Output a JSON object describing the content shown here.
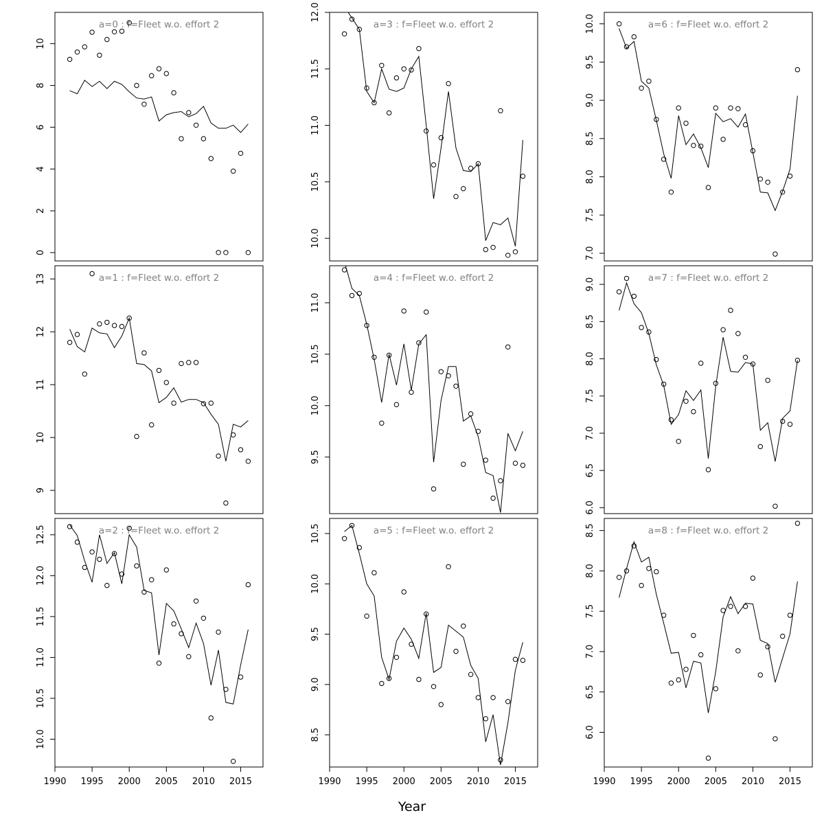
{
  "figure": {
    "xlabel": "Year"
  },
  "chart_data": [
    {
      "type": "line",
      "title": "a=0  :  f=Fleet w.o. effort 2",
      "xlim": [
        1990,
        2018
      ],
      "ylim": [
        -0.4,
        11.5
      ],
      "xticks": [
        1990,
        1995,
        2000,
        2005,
        2010,
        2015
      ],
      "yticks": [
        0,
        2,
        4,
        6,
        8,
        10
      ],
      "observed": {
        "x": [
          1992,
          1993,
          1994,
          1995,
          1996,
          1997,
          1998,
          1999,
          2000,
          2001,
          2002,
          2003,
          2004,
          2005,
          2006,
          2007,
          2008,
          2009,
          2010,
          2011,
          2012,
          2013,
          2014,
          2015,
          2016
        ],
        "y": [
          9.25,
          9.6,
          9.85,
          10.55,
          9.45,
          10.2,
          10.57,
          10.6,
          11.0,
          8.0,
          7.1,
          8.47,
          8.8,
          8.57,
          7.65,
          5.45,
          6.7,
          6.1,
          5.45,
          4.5,
          0.0,
          0.0,
          3.9,
          4.75,
          0.0
        ]
      },
      "fitted": {
        "x": [
          1992,
          1993,
          1994,
          1995,
          1996,
          1997,
          1998,
          1999,
          2000,
          2001,
          2002,
          2003,
          2004,
          2005,
          2006,
          2007,
          2008,
          2009,
          2010,
          2011,
          2012,
          2013,
          2014,
          2015,
          2016
        ],
        "y": [
          7.75,
          7.6,
          8.25,
          7.95,
          8.2,
          7.85,
          8.2,
          8.05,
          7.7,
          7.4,
          7.35,
          7.45,
          6.3,
          6.6,
          6.7,
          6.75,
          6.5,
          6.65,
          7.0,
          6.2,
          5.95,
          5.95,
          6.1,
          5.75,
          6.15
        ]
      }
    },
    {
      "type": "line",
      "title": "a=1  :  f=Fleet w.o. effort 2",
      "xlim": [
        1990,
        2018
      ],
      "ylim": [
        8.56,
        13.25
      ],
      "xticks": [
        1990,
        1995,
        2000,
        2005,
        2010,
        2015
      ],
      "yticks": [
        9,
        10,
        11,
        12,
        13
      ],
      "observed": {
        "x": [
          1992,
          1993,
          1994,
          1995,
          1996,
          1997,
          1998,
          1999,
          2000,
          2001,
          2002,
          2003,
          2004,
          2005,
          2006,
          2007,
          2008,
          2009,
          2010,
          2011,
          2012,
          2013,
          2014,
          2015,
          2016
        ],
        "y": [
          11.8,
          11.95,
          11.2,
          13.1,
          12.15,
          12.18,
          12.12,
          12.1,
          12.26,
          10.02,
          11.6,
          10.24,
          11.27,
          11.04,
          10.65,
          11.4,
          11.42,
          11.42,
          10.64,
          10.65,
          9.65,
          8.76,
          10.05,
          9.77,
          9.55
        ]
      },
      "fitted": {
        "x": [
          1992,
          1993,
          1994,
          1995,
          1996,
          1997,
          1998,
          1999,
          2000,
          2001,
          2002,
          2003,
          2004,
          2005,
          2006,
          2007,
          2008,
          2009,
          2010,
          2011,
          2012,
          2013,
          2014,
          2015,
          2016
        ],
        "y": [
          12.05,
          11.72,
          11.62,
          12.07,
          11.98,
          11.96,
          11.7,
          11.92,
          12.26,
          11.4,
          11.38,
          11.26,
          10.66,
          10.76,
          10.94,
          10.67,
          10.72,
          10.72,
          10.66,
          10.44,
          10.25,
          9.55,
          10.25,
          10.2,
          10.32
        ]
      }
    },
    {
      "type": "line",
      "title": "a=2  :  f=Fleet w.o. effort 2",
      "xlim": [
        1990,
        2018
      ],
      "ylim": [
        9.66,
        12.7
      ],
      "xticks": [
        1990,
        1995,
        2000,
        2005,
        2010,
        2015
      ],
      "yticks": [
        10.0,
        10.5,
        11.0,
        11.5,
        12.0,
        12.5
      ],
      "observed": {
        "x": [
          1992,
          1993,
          1994,
          1995,
          1996,
          1997,
          1998,
          1999,
          2000,
          2001,
          2002,
          2003,
          2004,
          2005,
          2006,
          2007,
          2008,
          2009,
          2010,
          2011,
          2012,
          2013,
          2014,
          2015,
          2016
        ],
        "y": [
          12.6,
          12.41,
          12.1,
          12.29,
          12.2,
          11.88,
          12.27,
          12.02,
          12.58,
          12.12,
          11.8,
          11.95,
          10.93,
          12.07,
          11.41,
          11.29,
          11.01,
          11.69,
          11.48,
          10.26,
          11.31,
          10.61,
          9.73,
          10.76,
          11.89
        ]
      },
      "fitted": {
        "x": [
          1992,
          1993,
          1994,
          1995,
          1996,
          1997,
          1998,
          1999,
          2000,
          2001,
          2002,
          2003,
          2004,
          2005,
          2006,
          2007,
          2008,
          2009,
          2010,
          2011,
          2012,
          2013,
          2014,
          2015,
          2016
        ],
        "y": [
          12.62,
          12.49,
          12.18,
          11.92,
          12.5,
          12.15,
          12.28,
          11.9,
          12.5,
          12.35,
          11.82,
          11.79,
          11.03,
          11.66,
          11.57,
          11.35,
          11.12,
          11.42,
          11.17,
          10.66,
          11.09,
          10.45,
          10.43,
          10.91,
          11.34
        ]
      }
    },
    {
      "type": "line",
      "title": "a=3  :  f=Fleet w.o. effort 2",
      "xlim": [
        1990,
        2018
      ],
      "ylim": [
        9.8,
        12.0
      ],
      "xticks": [
        1990,
        1995,
        2000,
        2005,
        2010,
        2015
      ],
      "yticks": [
        10.0,
        10.5,
        11.0,
        11.5,
        12.0
      ],
      "observed": {
        "x": [
          1992,
          1993,
          1994,
          1995,
          1996,
          1997,
          1998,
          1999,
          2000,
          2001,
          2002,
          2003,
          2004,
          2005,
          2006,
          2007,
          2008,
          2009,
          2010,
          2011,
          2012,
          2013,
          2014,
          2015,
          2016
        ],
        "y": [
          11.81,
          11.94,
          11.85,
          11.33,
          11.2,
          11.53,
          11.11,
          11.42,
          11.5,
          11.49,
          11.68,
          10.95,
          10.65,
          10.89,
          11.37,
          10.37,
          10.44,
          10.62,
          10.66,
          9.9,
          9.92,
          11.13,
          9.85,
          9.88,
          10.55
        ]
      },
      "fitted": {
        "x": [
          1992,
          1993,
          1994,
          1995,
          1996,
          1997,
          1998,
          1999,
          2000,
          2001,
          2002,
          2003,
          2004,
          2005,
          2006,
          2007,
          2008,
          2009,
          2010,
          2011,
          2012,
          2013,
          2014,
          2015,
          2016
        ],
        "y": [
          12.05,
          11.95,
          11.85,
          11.3,
          11.2,
          11.5,
          11.32,
          11.3,
          11.33,
          11.5,
          11.61,
          11.0,
          10.35,
          10.8,
          11.3,
          10.8,
          10.6,
          10.59,
          10.66,
          9.98,
          10.14,
          10.12,
          10.18,
          9.93,
          10.87
        ]
      }
    },
    {
      "type": "line",
      "title": "a=4  :  f=Fleet w.o. effort 2",
      "xlim": [
        1990,
        2018
      ],
      "ylim": [
        8.95,
        11.36
      ],
      "xticks": [
        1990,
        1995,
        2000,
        2005,
        2010,
        2015
      ],
      "yticks": [
        9.5,
        10.0,
        10.5,
        11.0
      ],
      "observed": {
        "x": [
          1992,
          1993,
          1994,
          1995,
          1996,
          1997,
          1998,
          1999,
          2000,
          2001,
          2002,
          2003,
          2004,
          2005,
          2006,
          2007,
          2008,
          2009,
          2010,
          2011,
          2012,
          2013,
          2014,
          2015,
          2016
        ],
        "y": [
          11.32,
          11.07,
          11.09,
          10.78,
          10.47,
          9.83,
          10.49,
          10.01,
          10.92,
          10.13,
          10.61,
          10.91,
          9.19,
          10.33,
          10.29,
          10.19,
          9.43,
          9.92,
          9.75,
          9.47,
          9.1,
          9.27,
          10.57,
          9.44,
          9.42
        ]
      },
      "fitted": {
        "x": [
          1992,
          1993,
          1994,
          1995,
          1996,
          1997,
          1998,
          1999,
          2000,
          2001,
          2002,
          2003,
          2004,
          2005,
          2006,
          2007,
          2008,
          2009,
          2010,
          2011,
          2012,
          2013,
          2014,
          2015,
          2016
        ],
        "y": [
          11.4,
          11.14,
          11.07,
          10.79,
          10.45,
          10.03,
          10.5,
          10.2,
          10.6,
          10.15,
          10.6,
          10.69,
          9.45,
          10.05,
          10.38,
          10.38,
          9.85,
          9.9,
          9.7,
          9.35,
          9.32,
          8.96,
          9.73,
          9.56,
          9.75
        ]
      }
    },
    {
      "type": "line",
      "title": "a=5  :  f=Fleet w.o. effort 2",
      "xlim": [
        1990,
        2018
      ],
      "ylim": [
        8.18,
        10.65
      ],
      "xticks": [
        1990,
        1995,
        2000,
        2005,
        2010,
        2015
      ],
      "yticks": [
        8.5,
        9.0,
        9.5,
        10.0,
        10.5
      ],
      "observed": {
        "x": [
          1992,
          1993,
          1994,
          1995,
          1996,
          1997,
          1998,
          1999,
          2000,
          2001,
          2002,
          2003,
          2004,
          2005,
          2006,
          2007,
          2008,
          2009,
          2010,
          2011,
          2012,
          2013,
          2014,
          2015,
          2016
        ],
        "y": [
          10.45,
          10.58,
          10.36,
          9.68,
          10.11,
          9.01,
          9.06,
          9.27,
          9.92,
          9.4,
          9.05,
          9.7,
          8.98,
          8.8,
          10.17,
          9.33,
          9.58,
          9.1,
          8.87,
          8.66,
          8.87,
          8.25,
          8.83,
          9.25,
          9.24
        ]
      },
      "fitted": {
        "x": [
          1992,
          1993,
          1994,
          1995,
          1996,
          1997,
          1998,
          1999,
          2000,
          2001,
          2002,
          2003,
          2004,
          2005,
          2006,
          2007,
          2008,
          2009,
          2010,
          2011,
          2012,
          2013,
          2014,
          2015,
          2016
        ],
        "y": [
          10.52,
          10.58,
          10.3,
          10.0,
          9.88,
          9.27,
          9.05,
          9.43,
          9.56,
          9.45,
          9.26,
          9.71,
          9.12,
          9.17,
          9.59,
          9.53,
          9.47,
          9.19,
          9.06,
          8.43,
          8.7,
          8.2,
          8.62,
          9.14,
          9.42
        ]
      }
    },
    {
      "type": "line",
      "title": "a=6  :  f=Fleet w.o. effort 2",
      "xlim": [
        1990,
        2018
      ],
      "ylim": [
        6.9,
        10.15
      ],
      "xticks": [
        1990,
        1995,
        2000,
        2005,
        2010,
        2015
      ],
      "yticks": [
        7.0,
        7.5,
        8.0,
        8.5,
        9.0,
        9.5,
        10.0
      ],
      "observed": {
        "x": [
          1992,
          1993,
          1994,
          1995,
          1996,
          1997,
          1998,
          1999,
          2000,
          2001,
          2002,
          2003,
          2004,
          2005,
          2006,
          2007,
          2008,
          2009,
          2010,
          2011,
          2012,
          2013,
          2014,
          2015,
          2016
        ],
        "y": [
          10.0,
          9.7,
          9.83,
          9.16,
          9.25,
          8.75,
          8.23,
          7.8,
          8.9,
          8.7,
          8.41,
          8.4,
          7.86,
          8.9,
          8.49,
          8.9,
          8.89,
          8.68,
          8.34,
          7.97,
          7.93,
          6.99,
          7.8,
          8.01,
          9.4
        ]
      },
      "fitted": {
        "x": [
          1992,
          1993,
          1994,
          1995,
          1996,
          1997,
          1998,
          1999,
          2000,
          2001,
          2002,
          2003,
          2004,
          2005,
          2006,
          2007,
          2008,
          2009,
          2010,
          2011,
          2012,
          2013,
          2014,
          2015,
          2016
        ],
        "y": [
          9.94,
          9.68,
          9.77,
          9.25,
          9.16,
          8.74,
          8.3,
          7.98,
          8.8,
          8.42,
          8.56,
          8.38,
          8.12,
          8.83,
          8.72,
          8.76,
          8.65,
          8.82,
          8.32,
          7.8,
          7.79,
          7.56,
          7.81,
          8.1,
          9.06
        ]
      }
    },
    {
      "type": "line",
      "title": "a=7  :  f=Fleet w.o. effort 2",
      "xlim": [
        1990,
        2018
      ],
      "ylim": [
        5.92,
        9.25
      ],
      "xticks": [
        1990,
        1995,
        2000,
        2005,
        2010,
        2015
      ],
      "yticks": [
        6.0,
        6.5,
        7.0,
        7.5,
        8.0,
        8.5,
        9.0
      ],
      "observed": {
        "x": [
          1992,
          1993,
          1994,
          1995,
          1996,
          1997,
          1998,
          1999,
          2000,
          2001,
          2002,
          2003,
          2004,
          2005,
          2006,
          2007,
          2008,
          2009,
          2010,
          2011,
          2012,
          2013,
          2014,
          2015,
          2016
        ],
        "y": [
          8.9,
          9.08,
          8.84,
          8.42,
          8.36,
          7.99,
          7.66,
          7.18,
          6.89,
          7.43,
          7.29,
          7.94,
          6.51,
          7.67,
          8.39,
          8.65,
          8.34,
          8.02,
          7.93,
          6.82,
          7.71,
          6.02,
          7.16,
          7.12,
          7.98
        ]
      },
      "fitted": {
        "x": [
          1992,
          1993,
          1994,
          1995,
          1996,
          1997,
          1998,
          1999,
          2000,
          2001,
          2002,
          2003,
          2004,
          2005,
          2006,
          2007,
          2008,
          2009,
          2010,
          2011,
          2012,
          2013,
          2014,
          2015,
          2016
        ],
        "y": [
          8.65,
          9.02,
          8.74,
          8.62,
          8.34,
          7.92,
          7.64,
          7.12,
          7.25,
          7.57,
          7.44,
          7.58,
          6.66,
          7.63,
          8.29,
          7.83,
          7.82,
          7.95,
          7.93,
          7.04,
          7.14,
          6.62,
          7.2,
          7.3,
          7.98
        ]
      }
    },
    {
      "type": "line",
      "title": "a=8  :  f=Fleet w.o. effort 2",
      "xlim": [
        1990,
        2018
      ],
      "ylim": [
        5.57,
        8.65
      ],
      "xticks": [
        1990,
        1995,
        2000,
        2005,
        2010,
        2015
      ],
      "yticks": [
        6.0,
        6.5,
        7.0,
        7.5,
        8.0,
        8.5
      ],
      "observed": {
        "x": [
          1992,
          1993,
          1994,
          1995,
          1996,
          1997,
          1998,
          1999,
          2000,
          2001,
          2002,
          2003,
          2004,
          2005,
          2006,
          2007,
          2008,
          2009,
          2010,
          2011,
          2012,
          2013,
          2014,
          2015,
          2016
        ],
        "y": [
          7.92,
          8.0,
          8.31,
          7.82,
          8.03,
          7.99,
          7.45,
          6.61,
          6.65,
          6.78,
          7.2,
          6.96,
          5.68,
          6.54,
          7.51,
          7.56,
          7.01,
          7.56,
          7.91,
          6.71,
          7.06,
          5.92,
          7.19,
          7.45,
          8.59
        ]
      },
      "fitted": {
        "x": [
          1992,
          1993,
          1994,
          1995,
          1996,
          1997,
          1998,
          1999,
          2000,
          2001,
          2002,
          2003,
          2004,
          2005,
          2006,
          2007,
          2008,
          2009,
          2010,
          2011,
          2012,
          2013,
          2014,
          2015,
          2016
        ],
        "y": [
          7.67,
          8.03,
          8.36,
          8.11,
          8.17,
          7.71,
          7.35,
          6.98,
          6.99,
          6.55,
          6.88,
          6.86,
          6.24,
          6.75,
          7.43,
          7.68,
          7.47,
          7.6,
          7.59,
          7.14,
          7.1,
          6.62,
          6.92,
          7.22,
          7.87
        ]
      }
    }
  ]
}
